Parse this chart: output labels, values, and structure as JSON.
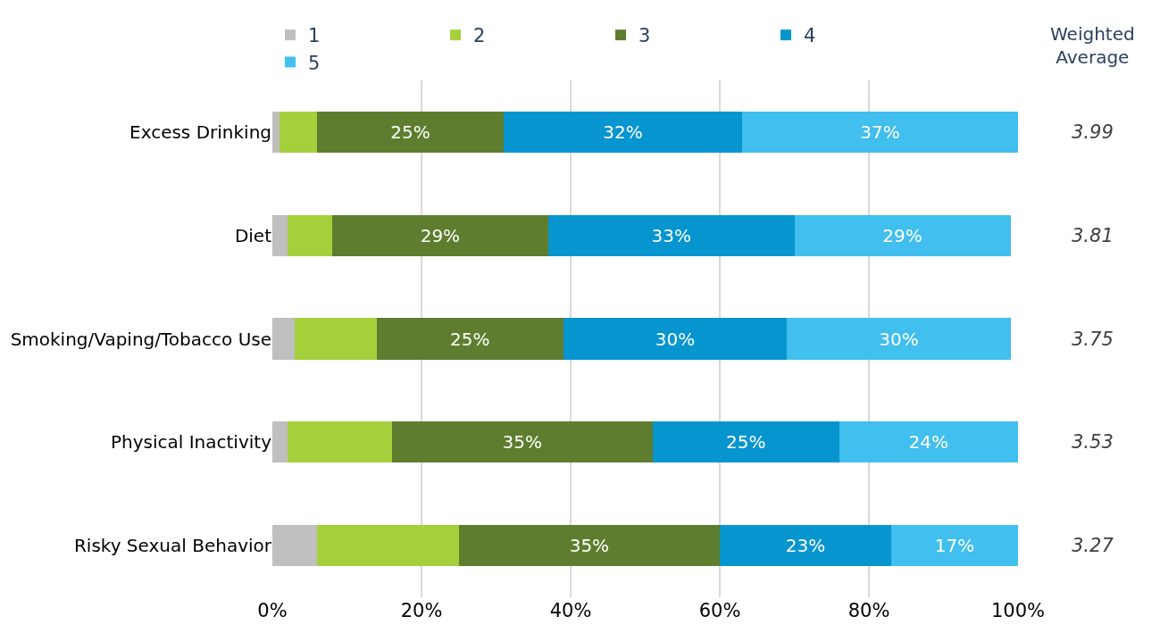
{
  "chart_data": {
    "type": "bar",
    "orientation": "horizontal",
    "stacked": true,
    "categories": [
      "Excess Drinking",
      "Diet",
      "Smoking/Vaping/Tobacco Use",
      "Physical Inactivity",
      "Risky Sexual Behavior"
    ],
    "series": [
      {
        "name": "1",
        "color": "#bfbfbf",
        "values": [
          1,
          2,
          3,
          2,
          6
        ],
        "value_labels": [
          null,
          null,
          null,
          null,
          null
        ]
      },
      {
        "name": "2",
        "color": "#a5d03c",
        "values": [
          5,
          6,
          11,
          14,
          19
        ],
        "value_labels": [
          null,
          null,
          null,
          null,
          null
        ]
      },
      {
        "name": "3",
        "color": "#5e7d2e",
        "values": [
          25,
          29,
          25,
          35,
          35
        ],
        "value_labels": [
          "25%",
          "29%",
          "25%",
          "35%",
          "35%"
        ]
      },
      {
        "name": "4",
        "color": "#0795d0",
        "values": [
          32,
          33,
          30,
          25,
          23
        ],
        "value_labels": [
          "32%",
          "33%",
          "30%",
          "25%",
          "23%"
        ]
      },
      {
        "name": "5",
        "color": "#41bfee",
        "values": [
          37,
          29,
          30,
          24,
          17
        ],
        "value_labels": [
          "37%",
          "29%",
          "30%",
          "24%",
          "17%"
        ]
      }
    ],
    "xlim": [
      0,
      100
    ],
    "xticks": [
      {
        "value": 0,
        "label": "0%"
      },
      {
        "value": 20,
        "label": "20%"
      },
      {
        "value": 40,
        "label": "40%"
      },
      {
        "value": 60,
        "label": "60%"
      },
      {
        "value": 80,
        "label": "80%"
      },
      {
        "value": 100,
        "label": "100%"
      }
    ],
    "grid": "x",
    "legend": "top",
    "annotations": [
      "Weighted\nAverage",
      "3.99",
      "3.81",
      "3.75",
      "3.53",
      "3.27"
    ]
  }
}
